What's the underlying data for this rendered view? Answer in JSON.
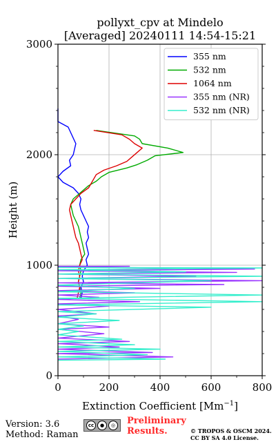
{
  "chart_data": {
    "type": "line",
    "title_line1": "pollyxt_cpv at Mindelo",
    "title_line2": "[Averaged] 20240111 14:54-15:21",
    "xlabel": "Extinction Coefficient [Mm",
    "xlabel_sup": "−1",
    "xlabel_end": "]",
    "ylabel": "Height (m)",
    "xlim": [
      0,
      800
    ],
    "ylim": [
      0,
      3000
    ],
    "x_ticks": [
      0,
      200,
      400,
      600,
      800
    ],
    "y_ticks": [
      0,
      1000,
      2000,
      3000
    ],
    "grid": true,
    "legend_position": "top-right",
    "series": [
      {
        "name": "355 nm",
        "color": "#0000ff",
        "points": [
          [
            0,
            2418
          ],
          [
            0,
            2398
          ],
          [
            0,
            2300
          ],
          [
            40,
            2250
          ],
          [
            50,
            2200
          ],
          [
            60,
            2150
          ],
          [
            70,
            2100
          ],
          [
            65,
            2050
          ],
          [
            60,
            2000
          ],
          [
            45,
            1950
          ],
          [
            50,
            1900
          ],
          [
            20,
            1850
          ],
          [
            0,
            1800
          ],
          [
            20,
            1750
          ],
          [
            60,
            1700
          ],
          [
            80,
            1650
          ],
          [
            90,
            1600
          ],
          [
            85,
            1550
          ],
          [
            90,
            1500
          ],
          [
            100,
            1450
          ],
          [
            110,
            1400
          ],
          [
            120,
            1350
          ],
          [
            115,
            1300
          ],
          [
            120,
            1250
          ],
          [
            110,
            1200
          ],
          [
            115,
            1150
          ],
          [
            120,
            1100
          ],
          [
            110,
            1050
          ],
          [
            115,
            1000
          ],
          [
            100,
            950
          ],
          [
            95,
            900
          ],
          [
            100,
            850
          ],
          [
            90,
            800
          ],
          [
            95,
            750
          ],
          [
            90,
            700
          ]
        ]
      },
      {
        "name": "532 nm",
        "color": "#00aa00",
        "points": [
          [
            150,
            2220
          ],
          [
            300,
            2170
          ],
          [
            320,
            2140
          ],
          [
            330,
            2100
          ],
          [
            430,
            2060
          ],
          [
            490,
            2020
          ],
          [
            380,
            1990
          ],
          [
            350,
            1950
          ],
          [
            310,
            1910
          ],
          [
            270,
            1880
          ],
          [
            200,
            1840
          ],
          [
            170,
            1800
          ],
          [
            150,
            1760
          ],
          [
            120,
            1720
          ],
          [
            100,
            1680
          ],
          [
            80,
            1640
          ],
          [
            60,
            1600
          ],
          [
            50,
            1550
          ],
          [
            55,
            1500
          ],
          [
            60,
            1450
          ],
          [
            70,
            1400
          ],
          [
            80,
            1350
          ],
          [
            85,
            1300
          ],
          [
            90,
            1250
          ],
          [
            95,
            1200
          ],
          [
            100,
            1150
          ],
          [
            105,
            1100
          ],
          [
            90,
            1050
          ],
          [
            85,
            1000
          ],
          [
            90,
            950
          ],
          [
            85,
            900
          ],
          [
            80,
            850
          ],
          [
            85,
            800
          ],
          [
            90,
            750
          ],
          [
            85,
            700
          ]
        ]
      },
      {
        "name": "1064 nm",
        "color": "#dd0000",
        "points": [
          [
            140,
            2220
          ],
          [
            250,
            2180
          ],
          [
            280,
            2140
          ],
          [
            300,
            2100
          ],
          [
            330,
            2060
          ],
          [
            310,
            2020
          ],
          [
            290,
            1980
          ],
          [
            270,
            1940
          ],
          [
            230,
            1900
          ],
          [
            180,
            1860
          ],
          [
            150,
            1820
          ],
          [
            140,
            1780
          ],
          [
            130,
            1740
          ],
          [
            120,
            1700
          ],
          [
            90,
            1650
          ],
          [
            70,
            1600
          ],
          [
            50,
            1550
          ],
          [
            45,
            1500
          ],
          [
            50,
            1450
          ],
          [
            55,
            1400
          ],
          [
            60,
            1350
          ],
          [
            65,
            1300
          ],
          [
            70,
            1250
          ],
          [
            80,
            1200
          ],
          [
            85,
            1150
          ],
          [
            90,
            1100
          ],
          [
            95,
            1050
          ],
          [
            85,
            1000
          ],
          [
            80,
            950
          ],
          [
            85,
            900
          ],
          [
            80,
            850
          ],
          [
            85,
            800
          ],
          [
            80,
            750
          ],
          [
            75,
            700
          ]
        ]
      },
      {
        "name": "355 nm (NR)",
        "color": "#9933ff",
        "points": [
          [
            0,
            990
          ],
          [
            280,
            990
          ],
          [
            0,
            985
          ],
          [
            770,
            965
          ],
          [
            0,
            950
          ],
          [
            700,
            935
          ],
          [
            0,
            920
          ],
          [
            540,
            900
          ],
          [
            0,
            880
          ],
          [
            800,
            860
          ],
          [
            0,
            840
          ],
          [
            650,
            825
          ],
          [
            0,
            810
          ],
          [
            400,
            790
          ],
          [
            0,
            770
          ],
          [
            300,
            750
          ],
          [
            0,
            730
          ],
          [
            160,
            710
          ],
          [
            0,
            690
          ],
          [
            320,
            670
          ],
          [
            0,
            650
          ],
          [
            200,
            630
          ],
          [
            0,
            600
          ],
          [
            150,
            560
          ],
          [
            0,
            540
          ],
          [
            80,
            510
          ],
          [
            0,
            470
          ],
          [
            200,
            440
          ],
          [
            0,
            420
          ],
          [
            180,
            380
          ],
          [
            0,
            340
          ],
          [
            280,
            310
          ],
          [
            0,
            290
          ],
          [
            240,
            260
          ],
          [
            0,
            240
          ],
          [
            370,
            210
          ],
          [
            0,
            200
          ],
          [
            450,
            170
          ],
          [
            0,
            150
          ]
        ]
      },
      {
        "name": "532 nm (NR)",
        "color": "#33eecc",
        "points": [
          [
            0,
            980
          ],
          [
            800,
            975
          ],
          [
            0,
            960
          ],
          [
            500,
            940
          ],
          [
            0,
            920
          ],
          [
            800,
            900
          ],
          [
            0,
            880
          ],
          [
            600,
            860
          ],
          [
            0,
            820
          ],
          [
            300,
            790
          ],
          [
            0,
            760
          ],
          [
            800,
            730
          ],
          [
            0,
            700
          ],
          [
            800,
            670
          ],
          [
            0,
            640
          ],
          [
            600,
            620
          ],
          [
            0,
            580
          ],
          [
            150,
            560
          ],
          [
            0,
            530
          ],
          [
            240,
            500
          ],
          [
            0,
            470
          ],
          [
            100,
            450
          ],
          [
            0,
            420
          ],
          [
            80,
            400
          ],
          [
            0,
            370
          ],
          [
            250,
            330
          ],
          [
            0,
            310
          ],
          [
            300,
            280
          ],
          [
            0,
            260
          ],
          [
            400,
            240
          ],
          [
            0,
            220
          ],
          [
            350,
            190
          ],
          [
            0,
            170
          ],
          [
            420,
            150
          ],
          [
            0,
            140
          ]
        ]
      }
    ]
  },
  "footer": {
    "version": "Version: 3.6",
    "method": "Method: Raman",
    "preliminary_line1": "Preliminary",
    "preliminary_line2": "Results.",
    "copyright_line1": "© TROPOS & OSCM 2024.",
    "copyright_line2": "CC BY SA 4.0 License.",
    "cc_badge_text": "cc"
  }
}
